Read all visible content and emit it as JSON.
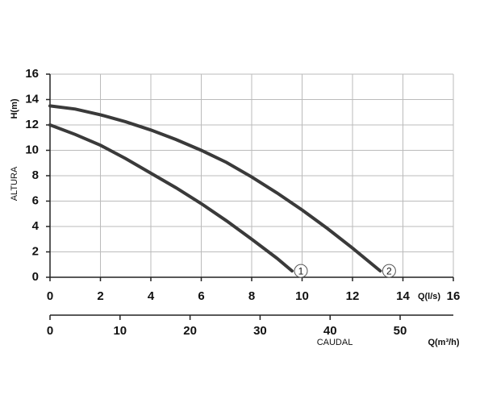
{
  "chart_data": {
    "type": "line",
    "ylabel": "H(m)",
    "ylabel2": "ALTURA",
    "xlabel": "Q(l/s)",
    "x2label": "Q(m³/h)",
    "x2title": "CAUDAL",
    "xlim": [
      0,
      16
    ],
    "xticks": [
      0,
      2,
      4,
      6,
      8,
      10,
      12,
      14,
      16
    ],
    "ylim": [
      0,
      16
    ],
    "yticks": [
      0,
      2,
      4,
      6,
      8,
      10,
      12,
      14,
      16
    ],
    "x2lim": [
      0,
      57.6
    ],
    "x2ticks": [
      0,
      10,
      20,
      30,
      40,
      50
    ],
    "grid": true,
    "series": [
      {
        "name": "1",
        "color": "#3a3a3a",
        "x": [
          0,
          1,
          2,
          3,
          4,
          5,
          6,
          7,
          8,
          9,
          9.6
        ],
        "values": [
          12,
          11.25,
          10.4,
          9.35,
          8.2,
          7.05,
          5.8,
          4.45,
          3,
          1.5,
          0.5
        ]
      },
      {
        "name": "2",
        "color": "#3a3a3a",
        "x": [
          0,
          1,
          2,
          3,
          4,
          5,
          6,
          7,
          8,
          9,
          10,
          11,
          12,
          13.1
        ],
        "values": [
          13.5,
          13.25,
          12.8,
          12.25,
          11.6,
          10.85,
          10,
          9.05,
          7.9,
          6.65,
          5.3,
          3.85,
          2.3,
          0.5
        ]
      }
    ]
  }
}
